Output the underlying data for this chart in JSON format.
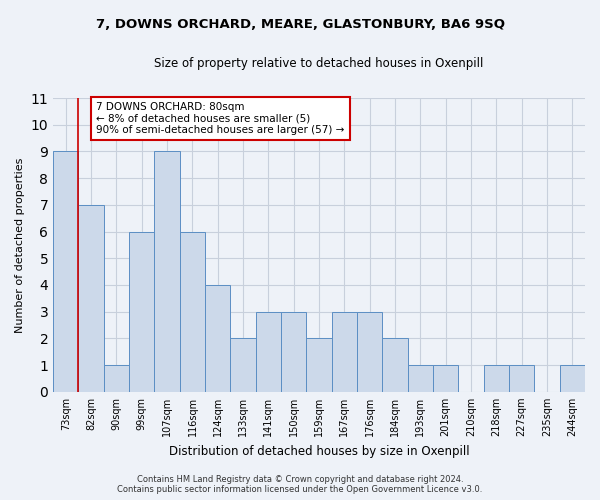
{
  "title": "7, DOWNS ORCHARD, MEARE, GLASTONBURY, BA6 9SQ",
  "subtitle": "Size of property relative to detached houses in Oxenpill",
  "xlabel": "Distribution of detached houses by size in Oxenpill",
  "ylabel": "Number of detached properties",
  "categories": [
    "73sqm",
    "82sqm",
    "90sqm",
    "99sqm",
    "107sqm",
    "116sqm",
    "124sqm",
    "133sqm",
    "141sqm",
    "150sqm",
    "159sqm",
    "167sqm",
    "176sqm",
    "184sqm",
    "193sqm",
    "201sqm",
    "210sqm",
    "218sqm",
    "227sqm",
    "235sqm",
    "244sqm"
  ],
  "values": [
    9,
    7,
    1,
    6,
    9,
    6,
    4,
    2,
    3,
    3,
    2,
    3,
    3,
    2,
    1,
    1,
    0,
    1,
    1,
    0,
    1
  ],
  "bar_color": "#ccd9ea",
  "bar_edge_color": "#5b8ec4",
  "red_line_x": 0.5,
  "annotation_text": "7 DOWNS ORCHARD: 80sqm\n← 8% of detached houses are smaller (5)\n90% of semi-detached houses are larger (57) →",
  "annotation_box_facecolor": "#ffffff",
  "annotation_box_edgecolor": "#cc0000",
  "ylim": [
    0,
    11
  ],
  "yticks": [
    0,
    1,
    2,
    3,
    4,
    5,
    6,
    7,
    8,
    9,
    10,
    11
  ],
  "footer1": "Contains HM Land Registry data © Crown copyright and database right 2024.",
  "footer2": "Contains public sector information licensed under the Open Government Licence v3.0.",
  "background_color": "#eef2f8",
  "plot_bg_color": "#eef2f8",
  "grid_color": "#c8d0dc",
  "title_fontsize": 9.5,
  "subtitle_fontsize": 8.5,
  "ylabel_fontsize": 8,
  "xlabel_fontsize": 8.5,
  "tick_fontsize": 7,
  "annot_fontsize": 7.5,
  "footer_fontsize": 6
}
